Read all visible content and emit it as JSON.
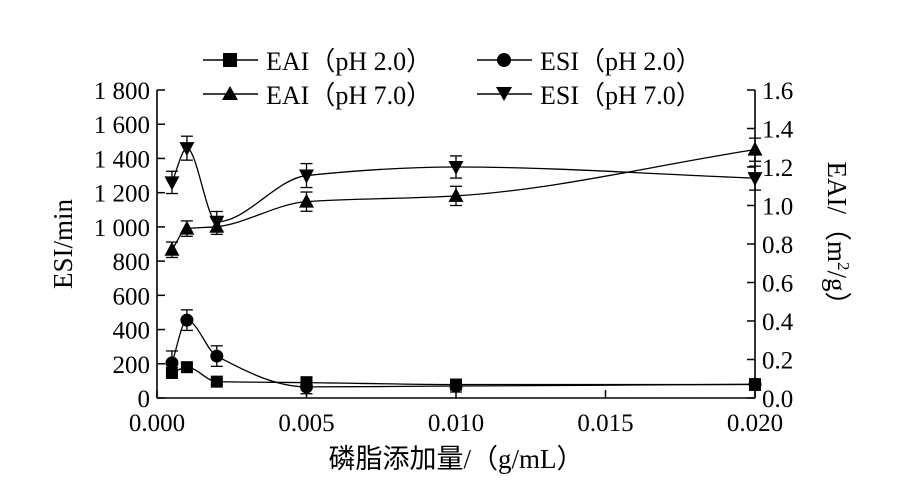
{
  "chart_data": {
    "type": "line",
    "xlabel": "磷脂添加量/（g/mL）",
    "ylabel_left": "ESI/min",
    "ylabel_right_parts": [
      "EAI/（m",
      "2",
      "/g）"
    ],
    "x_ticks": [
      "0.000",
      "0.005",
      "0.010",
      "0.015",
      "0.020"
    ],
    "y_left_ticks": [
      "0",
      "200",
      "400",
      "600",
      "800",
      "1 000",
      "1 200",
      "1 400",
      "1 600",
      "1 800"
    ],
    "y_right_ticks": [
      "0.0",
      "0.2",
      "0.4",
      "0.6",
      "0.8",
      "1.0",
      "1.2",
      "1.4",
      "1.6"
    ],
    "xlim": [
      0,
      0.02
    ],
    "ylim_left": [
      0,
      1800
    ],
    "ylim_right": [
      0,
      1.6
    ],
    "legend_position": "top",
    "series": [
      {
        "name": "EAI（pH 2.0）",
        "axis": "right",
        "marker": "square",
        "x": [
          0.0005,
          0.001,
          0.002,
          0.005,
          0.01,
          0.02
        ],
        "y": [
          0.13,
          0.16,
          0.085,
          0.08,
          0.07,
          0.07
        ],
        "err": [
          0.015,
          0.015,
          0.015,
          0.03,
          0.02,
          0.03
        ]
      },
      {
        "name": "ESI（pH 2.0）",
        "axis": "left",
        "marker": "circle",
        "x": [
          0.0005,
          0.001,
          0.002,
          0.005,
          0.01,
          0.02
        ],
        "y": [
          205,
          455,
          245,
          65,
          70,
          80
        ],
        "err": [
          70,
          60,
          60,
          40,
          35,
          30
        ]
      },
      {
        "name": "EAI（pH 7.0）",
        "axis": "right",
        "marker": "triangle-up",
        "x": [
          0.0005,
          0.001,
          0.002,
          0.005,
          0.01,
          0.02
        ],
        "y": [
          0.77,
          0.88,
          0.89,
          1.02,
          1.05,
          1.29
        ],
        "err": [
          0.04,
          0.04,
          0.04,
          0.05,
          0.05,
          0.06
        ]
      },
      {
        "name": "ESI（pH 7.0）",
        "axis": "left",
        "marker": "triangle-down",
        "x": [
          0.0005,
          0.001,
          0.002,
          0.005,
          0.01,
          0.02
        ],
        "y": [
          1260,
          1460,
          1030,
          1300,
          1350,
          1285
        ],
        "err": [
          65,
          70,
          60,
          70,
          65,
          70
        ]
      }
    ]
  }
}
